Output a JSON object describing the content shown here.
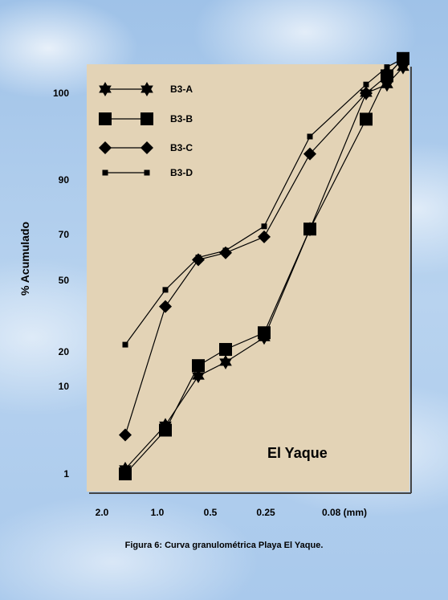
{
  "chart_data": {
    "type": "line",
    "ylabel": "% Acumulado",
    "xlabel": "",
    "annotation": "El Yaque",
    "x_ticks": [
      "2.0",
      "1.0",
      "0.5",
      "0.25",
      "0.08 (mm)"
    ],
    "y_ticks": [
      "1",
      "10",
      "20",
      "50",
      "70",
      "90",
      "100"
    ],
    "x": [
      1.6,
      1.0,
      0.6,
      0.45,
      0.25,
      0.12,
      0.04,
      0.03,
      0.02
    ],
    "series": [
      {
        "name": "B3-A",
        "marker": "star",
        "values": [
          1.5,
          6,
          13,
          17,
          26,
          72,
          100,
          101,
          103
        ]
      },
      {
        "name": "B3-B",
        "marker": "square",
        "values": [
          1,
          5.5,
          16,
          21,
          28,
          72,
          97,
          102,
          104
        ]
      },
      {
        "name": "B3-C",
        "marker": "diamond",
        "values": [
          5,
          39,
          59,
          62,
          69,
          93,
          100,
          102,
          104
        ]
      },
      {
        "name": "B3-D",
        "marker": "small-square",
        "values": [
          23,
          46,
          60,
          63,
          73,
          95,
          101,
          103,
          104
        ]
      }
    ],
    "legend_position": "top-left",
    "grid": false
  },
  "caption": "Figura 6: Curva granulométrica Playa El Yaque.",
  "colors": {
    "plot_background": "#e3d3b6",
    "line": "#000000"
  }
}
